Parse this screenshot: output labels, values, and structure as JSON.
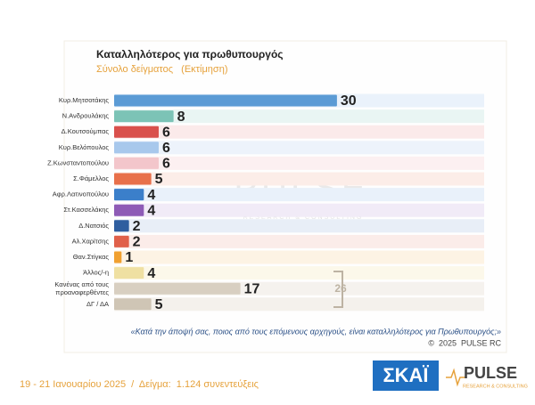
{
  "chart_data": {
    "type": "barh",
    "title": "Καταλληλότερος για πρωθυπουργός",
    "subtitle": "Σύνολο δείγματος   (Εκτίμηση)",
    "categories": [
      "Κυρ.Μητσοτάκης",
      "Ν.Ανδρουλάκης",
      "Δ.Κουτσούμπας",
      "Κυρ.Βελόπουλος",
      "Ζ.Κωνσταντοπούλου",
      "Σ.Φάμελλος",
      "Αφρ.Λατινοπούλου",
      "Στ.Κασσελάκης",
      "Δ.Νατσιός",
      "Αλ.Χαρίτσης",
      "Θαν.Στίγκας",
      "Άλλος/-η",
      "Κανένας από τους προαναφερθέντες",
      "ΔΓ / ΔΑ"
    ],
    "values": [
      30,
      8,
      6,
      6,
      6,
      5,
      4,
      4,
      2,
      2,
      1,
      4,
      17,
      5
    ],
    "colors": [
      "#5b9bd5",
      "#7cc3b6",
      "#d9504c",
      "#a8c8ec",
      "#f3c6cb",
      "#e8704a",
      "#3b7fca",
      "#8e5bb6",
      "#2f5e9f",
      "#e0604a",
      "#f0a030",
      "#efe0a2",
      "#d8cfc1",
      "#cfc5b5"
    ],
    "row_colors": [
      "#eaf2fb",
      "#e9f5f3",
      "#fbeaea",
      "#edf3fb",
      "#fcf0f1",
      "#fcede8",
      "#e9f1fa",
      "#f1ebf7",
      "#e8eef7",
      "#fbece9",
      "#fdf3e4",
      "#fcf8ea",
      "#f5f2ee",
      "#f4f1ec"
    ],
    "group_total": 26,
    "question": "«Κατά την άποψή σας, ποιος από τους επόμενους αρχηγούς, είναι καταλληλότερος για Πρωθυπουργός;»",
    "copyright": "©  2025  PULSE RC",
    "watermark": "PULSE",
    "watermark_sub": "RESEARCH & CONSULTING"
  },
  "footer": {
    "text": "19 - 21 Ιανουαρίου 2025  /  Δείγμα:  1.124 συνεντεύξεις",
    "logo_skai": "ΣΚΑΪ",
    "logo_pulse": "PULSE",
    "logo_pulse_sub": "RESEARCH & CONSULTING"
  }
}
